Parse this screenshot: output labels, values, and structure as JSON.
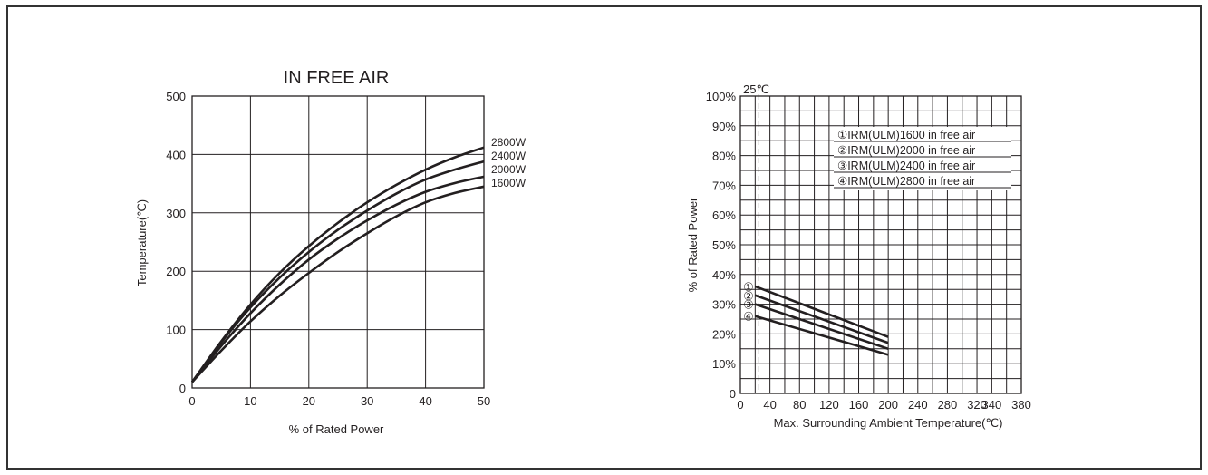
{
  "chart_data": [
    {
      "type": "line",
      "title": "IN FREE AIR",
      "xlabel": "% of Rated Power",
      "ylabel": "Temperature(℃)",
      "xlim": [
        0,
        50
      ],
      "ylim": [
        0,
        500
      ],
      "x_ticks": [
        "0",
        "10",
        "20",
        "30",
        "40",
        "50"
      ],
      "y_ticks": [
        "0",
        "100",
        "200",
        "300",
        "400",
        "500"
      ],
      "grid": true,
      "series": [
        {
          "name": "2800W",
          "x": [
            0,
            5,
            10,
            15,
            20,
            25,
            30,
            35,
            40,
            45,
            50
          ],
          "y": [
            10,
            80,
            143,
            197,
            243,
            283,
            318,
            348,
            374,
            395,
            412
          ]
        },
        {
          "name": "2400W",
          "x": [
            0,
            5,
            10,
            15,
            20,
            25,
            30,
            35,
            40,
            45,
            50
          ],
          "y": [
            10,
            78,
            138,
            189,
            233,
            271,
            304,
            333,
            357,
            374,
            388
          ]
        },
        {
          "name": "2000W",
          "x": [
            0,
            5,
            10,
            15,
            20,
            25,
            30,
            35,
            40,
            45,
            50
          ],
          "y": [
            10,
            72,
            128,
            177,
            220,
            256,
            287,
            314,
            336,
            351,
            362
          ]
        },
        {
          "name": "1600W",
          "x": [
            0,
            5,
            10,
            15,
            20,
            25,
            30,
            35,
            40,
            45,
            50
          ],
          "y": [
            10,
            64,
            114,
            158,
            197,
            233,
            265,
            294,
            318,
            334,
            345
          ]
        }
      ]
    },
    {
      "type": "line",
      "title": "",
      "xlabel": "Max. Surrounding Ambient Temperature(℃)",
      "ylabel": "% of Rated Power",
      "xlim": [
        0,
        380
      ],
      "ylim": [
        0,
        100
      ],
      "x_ticks": [
        "0",
        "40",
        "80",
        "120",
        "160",
        "200",
        "240",
        "280",
        "320",
        "340",
        "380"
      ],
      "y_ticks": [
        "0",
        "10%",
        "20%",
        "30%",
        "40%",
        "50%",
        "60%",
        "70%",
        "80%",
        "90%",
        "100%"
      ],
      "grid": true,
      "reference_line": {
        "x": 25,
        "label": "25℃"
      },
      "legend": {
        "position": "top-right",
        "entries": [
          "①IRM(ULM)1600 in free air",
          "②IRM(ULM)2000 in free air",
          "③IRM(ULM)2400 in free air",
          "④IRM(ULM)2800 in free air"
        ]
      },
      "series": [
        {
          "name": "①",
          "x": [
            20,
            200
          ],
          "y": [
            36,
            19
          ]
        },
        {
          "name": "②",
          "x": [
            20,
            200
          ],
          "y": [
            33,
            17
          ]
        },
        {
          "name": "③",
          "x": [
            20,
            200
          ],
          "y": [
            30,
            15
          ]
        },
        {
          "name": "④",
          "x": [
            20,
            200
          ],
          "y": [
            26,
            13
          ]
        }
      ]
    }
  ]
}
